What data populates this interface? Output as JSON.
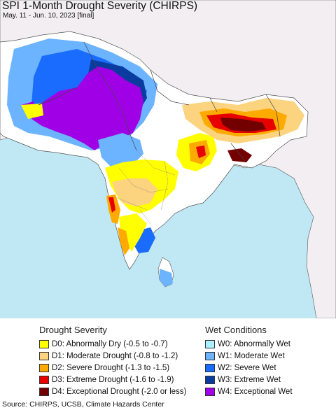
{
  "title": "SPI 1-Month Drought Severity (CHIRPS)",
  "subtitle": "May. 11 - Jun. 10, 2023 [final]",
  "legend": {
    "drought_title": "Drought Severity",
    "wet_title": "Wet Conditions",
    "drought": [
      {
        "label": "D0: Abnormally Dry (-0.5 to -0.7)",
        "color": "#ffff00"
      },
      {
        "label": "D1: Moderate Drought (-0.8 to -1.2)",
        "color": "#fcd37f"
      },
      {
        "label": "D2: Severe Drought (-1.3 to -1.5)",
        "color": "#ffaa00"
      },
      {
        "label": "D3: Extreme Drought (-1.6 to -1.9)",
        "color": "#e60000"
      },
      {
        "label": "D4: Exceptional Drought (-2.0 or less)",
        "color": "#730000"
      }
    ],
    "wet": [
      {
        "label": "W0: Abnormally Wet",
        "color": "#aaf0ff"
      },
      {
        "label": "W1: Moderate Wet",
        "color": "#6cb4ff"
      },
      {
        "label": "W2: Severe Wet",
        "color": "#1a6cff"
      },
      {
        "label": "W3: Extreme Wet",
        "color": "#0a3ca0"
      },
      {
        "label": "W4: Exceptional Wet",
        "color": "#a000e6"
      }
    ]
  },
  "source": "Source: CHIRPS, UCSB, Climate Hazards Center",
  "colors": {
    "ocean": "#bfe8f4",
    "land_outside": "#f2eef2",
    "land_neutral": "#ffffff"
  }
}
